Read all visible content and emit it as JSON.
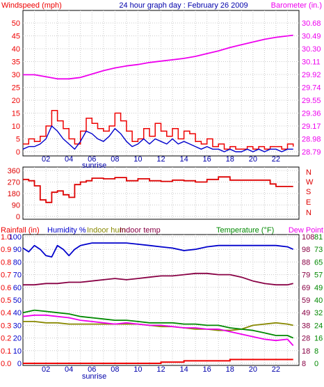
{
  "panel_top": {
    "title": "24 hour graph day : February 26 2009",
    "left_label": "Windspeed (mph)",
    "right_label": "Barometer (in.)",
    "sunrise_label": "sunrise",
    "x_ticks": [
      "02",
      "04",
      "06",
      "08",
      "10",
      "12",
      "14",
      "16",
      "18",
      "20",
      "22"
    ],
    "left_ticks": [
      "0",
      "5",
      "10",
      "15",
      "20",
      "25",
      "30",
      "35",
      "40",
      "45",
      "50"
    ],
    "right_ticks": [
      "28.79",
      "28.98",
      "29.17",
      "29.36",
      "29.55",
      "29.74",
      "29.92",
      "30.11",
      "30.30",
      "30.49",
      "30.68"
    ]
  },
  "panel_mid": {
    "left_ticks": [
      "0",
      "90",
      "180",
      "270",
      "360"
    ],
    "compass_labels": [
      "N",
      "W",
      "S",
      "E",
      "N"
    ]
  },
  "panel_bottom": {
    "label_rainfall": "Rainfall (in)",
    "label_humidity": "Humidity %",
    "label_indoor_hum": "Indoor hum",
    "label_indoor_temp": "Indoor temp",
    "label_temperature": "Temperature (°F)",
    "label_dew": "Dew Point",
    "sunrise_label": "sunrise",
    "x_ticks": [
      "02",
      "04",
      "06",
      "08",
      "10",
      "12",
      "14",
      "16",
      "18",
      "20",
      "22"
    ],
    "rain_ticks": [
      "0.0",
      "0.1",
      "0.2",
      "0.3",
      "0.4",
      "0.5",
      "0.6",
      "0.7",
      "0.8",
      "0.9",
      "1.0"
    ],
    "humidity_ticks": [
      "0",
      "10",
      "20",
      "30",
      "40",
      "50",
      "60",
      "70",
      "80",
      "90",
      "100"
    ],
    "temp_ticks_a": [
      "8",
      "18",
      "28",
      "38",
      "49",
      "59",
      "69",
      "79",
      "88",
      "98",
      "108"
    ],
    "temp_ticks_b": [
      "0",
      "8",
      "16",
      "24",
      "32",
      "40",
      "49",
      "57",
      "65",
      "73",
      "81"
    ]
  },
  "colors": {
    "wind_gust": "#ee0000",
    "wind_avg": "#0000cc",
    "barometer": "#ee00ee",
    "direction": "#dd0000",
    "humidity": "#0000cc",
    "indoor_hum": "#888800",
    "indoor_temp": "#880044",
    "temperature": "#008800",
    "dew_point": "#ee00ee",
    "rainfall": "#ee0000",
    "blue_text": "#0000aa",
    "green_text": "#008800"
  },
  "chart_data": [
    {
      "type": "line",
      "title": "24 hour graph day : February 26 2009",
      "xlabel": "",
      "ylim_left": [
        0,
        50
      ],
      "ylim_right": [
        28.79,
        30.68
      ],
      "xlim": [
        0,
        24
      ],
      "grid": true,
      "series": [
        {
          "name": "Barometer (in.)",
          "axis": "right",
          "x": [
            0,
            1,
            2,
            3,
            4,
            5,
            6,
            7,
            8,
            9,
            10,
            11,
            12,
            13,
            14,
            15,
            16,
            17,
            18,
            19,
            20,
            21,
            22,
            23.5
          ],
          "values": [
            29.92,
            29.92,
            29.89,
            29.86,
            29.86,
            29.88,
            29.93,
            29.98,
            30.02,
            30.05,
            30.07,
            30.1,
            30.12,
            30.14,
            30.16,
            30.19,
            30.23,
            30.27,
            30.32,
            30.36,
            30.4,
            30.44,
            30.47,
            30.5
          ]
        },
        {
          "name": "Windspeed (mph)",
          "axis": "left",
          "x": [
            0,
            0.5,
            1,
            1.5,
            2,
            2.5,
            3,
            3.5,
            4,
            4.5,
            5,
            5.5,
            6,
            6.5,
            7,
            7.5,
            8,
            8.5,
            9,
            9.5,
            10,
            10.5,
            11,
            11.5,
            12,
            12.5,
            13,
            13.5,
            14,
            14.5,
            15,
            15.5,
            16,
            16.5,
            17,
            17.5,
            18,
            18.5,
            19,
            19.5,
            20,
            20.5,
            21,
            21.5,
            22,
            22.5,
            23,
            23.5
          ],
          "values": [
            3,
            5,
            4,
            6,
            10,
            16,
            12,
            9,
            5,
            3,
            8,
            13,
            11,
            9,
            8,
            10,
            15,
            12,
            8,
            4,
            5,
            9,
            6,
            11,
            8,
            6,
            9,
            5,
            8,
            7,
            4,
            3,
            5,
            2,
            3,
            1,
            2,
            1,
            1,
            2,
            1,
            2,
            1,
            2,
            2,
            1,
            3,
            2
          ]
        },
        {
          "name": "Windspeed (mph) average",
          "axis": "left",
          "x": [
            0,
            0.5,
            1,
            1.5,
            2,
            2.5,
            3,
            3.5,
            4,
            4.5,
            5,
            5.5,
            6,
            6.5,
            7,
            7.5,
            8,
            8.5,
            9,
            9.5,
            10,
            10.5,
            11,
            11.5,
            12,
            12.5,
            13,
            13.5,
            14,
            14.5,
            15,
            15.5,
            16,
            16.5,
            17,
            17.5,
            18,
            18.5,
            19,
            19.5,
            20,
            20.5,
            21,
            21.5,
            22,
            22.5,
            23,
            23.5
          ],
          "values": [
            1,
            2,
            2,
            3,
            5,
            10,
            8,
            5,
            3,
            1,
            4,
            8,
            7,
            5,
            4,
            6,
            9,
            7,
            4,
            2,
            3,
            5,
            3,
            5,
            4,
            3,
            5,
            3,
            4,
            3,
            2,
            1,
            2,
            1,
            1,
            0,
            1,
            0,
            0,
            1,
            0,
            1,
            0,
            1,
            1,
            0,
            1,
            1
          ]
        }
      ]
    },
    {
      "type": "line",
      "title": "",
      "ylim": [
        0,
        360
      ],
      "xlim": [
        0,
        24
      ],
      "grid": true,
      "series": [
        {
          "name": "Wind direction",
          "x": [
            0,
            0.5,
            1,
            1.5,
            2,
            2.5,
            3,
            3.5,
            4,
            4.5,
            5,
            5.5,
            6,
            7,
            8,
            9,
            10,
            11,
            12,
            13,
            14,
            15,
            16,
            16.5,
            17,
            17.5,
            18,
            19,
            20,
            21,
            21.5,
            22,
            23,
            23.5
          ],
          "values": [
            290,
            280,
            240,
            130,
            110,
            190,
            200,
            170,
            150,
            250,
            270,
            280,
            300,
            295,
            305,
            280,
            295,
            280,
            275,
            285,
            280,
            270,
            290,
            290,
            310,
            310,
            285,
            285,
            285,
            285,
            255,
            235,
            235,
            235
          ]
        }
      ]
    },
    {
      "type": "line",
      "title": "",
      "xlim": [
        0,
        24
      ],
      "ylim_humidity": [
        0,
        100
      ],
      "ylim_temperature": [
        8,
        108
      ],
      "ylim_rainfall": [
        0,
        1
      ],
      "grid": true,
      "series": [
        {
          "name": "Humidity %",
          "axis": "humidity",
          "x": [
            0,
            0.5,
            1,
            1.5,
            2,
            2.5,
            3,
            3.5,
            4,
            4.5,
            5,
            5.5,
            6,
            7,
            8,
            9,
            10,
            11,
            12,
            13,
            14,
            15,
            16,
            17,
            18,
            19,
            20,
            21,
            22,
            23,
            23.5
          ],
          "values": [
            91,
            88,
            93,
            90,
            85,
            84,
            93,
            90,
            85,
            90,
            93,
            94,
            95,
            95,
            95,
            95,
            94,
            93,
            92,
            91,
            89,
            90,
            92,
            93,
            93,
            93,
            93,
            93,
            93,
            92,
            90
          ]
        },
        {
          "name": "Indoor hum",
          "axis": "humidity",
          "x": [
            0,
            1,
            2,
            3,
            4,
            5,
            6,
            7,
            8,
            9,
            10,
            11,
            12,
            13,
            14,
            15,
            16,
            17,
            18,
            19,
            20,
            21,
            22,
            23,
            23.5
          ],
          "values": [
            33,
            33,
            32,
            32,
            31,
            31,
            31,
            31,
            31,
            31,
            31,
            30,
            29,
            29,
            28,
            27,
            27,
            26,
            26,
            27,
            30,
            31,
            32,
            31,
            30
          ]
        },
        {
          "name": "Indoor temp",
          "axis": "temperature",
          "x": [
            0,
            1,
            2,
            3,
            4,
            5,
            6,
            7,
            8,
            9,
            10,
            11,
            12,
            13,
            14,
            15,
            16,
            17,
            18,
            19,
            20,
            21,
            22,
            23,
            23.5
          ],
          "values": [
            70,
            70,
            71,
            71,
            72,
            72,
            73,
            74,
            75,
            74,
            75,
            76,
            77,
            77,
            78,
            79,
            79,
            78,
            78,
            76,
            73,
            71,
            70,
            70,
            71
          ]
        },
        {
          "name": "Temperature (°F)",
          "axis": "temperature",
          "x": [
            0,
            1,
            2,
            3,
            4,
            5,
            6,
            7,
            8,
            9,
            10,
            11,
            12,
            13,
            14,
            15,
            16,
            17,
            18,
            19,
            20,
            21,
            22,
            23,
            23.5
          ],
          "values": [
            48,
            50,
            49,
            48,
            47,
            45,
            44,
            43,
            42,
            42,
            41,
            40,
            40,
            40,
            39,
            39,
            38,
            38,
            36,
            35,
            34,
            32,
            30,
            30,
            28
          ]
        },
        {
          "name": "Dew Point",
          "axis": "temperature",
          "x": [
            0,
            1,
            2,
            3,
            4,
            5,
            6,
            7,
            8,
            9,
            10,
            11,
            12,
            13,
            14,
            15,
            16,
            17,
            18,
            19,
            20,
            21,
            22,
            23,
            23.5
          ],
          "values": [
            45,
            46,
            46,
            45,
            44,
            42,
            41,
            40,
            39,
            40,
            39,
            38,
            38,
            37,
            36,
            36,
            35,
            35,
            33,
            31,
            29,
            27,
            26,
            27,
            22
          ]
        },
        {
          "name": "Rainfall (in)",
          "axis": "rainfall",
          "x": [
            0,
            4,
            8,
            10,
            12,
            14,
            16,
            18,
            20,
            22,
            23.5
          ],
          "values": [
            0.0,
            0.0,
            0.0,
            0.0,
            0.01,
            0.02,
            0.02,
            0.03,
            0.03,
            0.03,
            0.03
          ]
        }
      ]
    }
  ]
}
